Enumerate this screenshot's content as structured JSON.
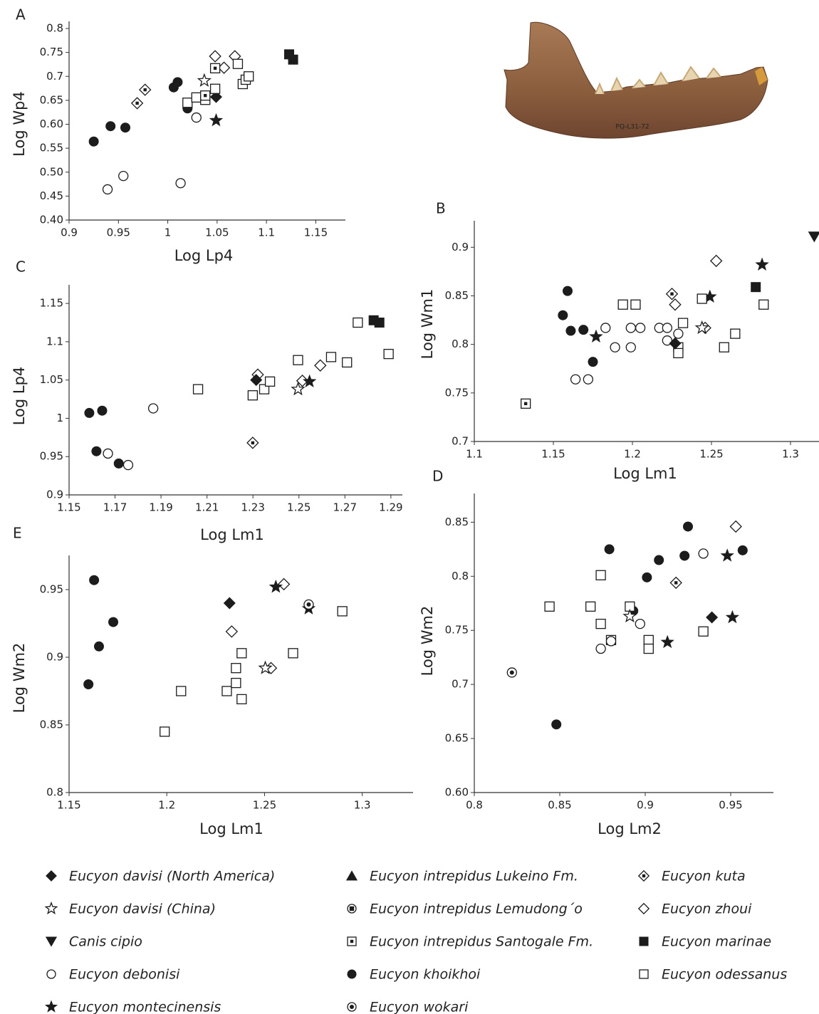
{
  "figure_photo": {
    "specimen_label": "PQ-L31-72"
  },
  "marker_color": "#1c1c1c",
  "legend": [
    {
      "name": "Eucyon davisi (North America)",
      "marker": "diamond-filled"
    },
    {
      "name": "Eucyon davisi (China)",
      "marker": "star-open"
    },
    {
      "name": "Canis cipio",
      "marker": "triangle-down"
    },
    {
      "name": "Eucyon debonisi",
      "marker": "circle-open"
    },
    {
      "name": "Eucyon montecinensis",
      "marker": "star-filled"
    },
    {
      "name": "Eucyon intrepidus Lukeino Fm.",
      "marker": "triangle-up"
    },
    {
      "name": "Eucyon intrepidus Lemudong´o",
      "marker": "circle-square"
    },
    {
      "name": "Eucyon intrepidus Santogale Fm.",
      "marker": "square-dot"
    },
    {
      "name": "Eucyon khoikhoi",
      "marker": "circle-filled"
    },
    {
      "name": "Eucyon wokari",
      "marker": "circle-dot"
    },
    {
      "name": "Eucyon kuta",
      "marker": "diamond-dot"
    },
    {
      "name": "Eucyon zhoui",
      "marker": "diamond-open"
    },
    {
      "name": "Eucyon marinae",
      "marker": "square-filled"
    },
    {
      "name": "Eucyon odessanus",
      "marker": "square-open"
    }
  ],
  "chart_data": [
    {
      "type": "scatter",
      "title": "A",
      "x_label": "Log Lp4",
      "y_label": "Log Wp4",
      "xlim": [
        0.9,
        1.18
      ],
      "ylim": [
        0.4,
        0.8
      ],
      "xticks": [
        0.9,
        0.95,
        1,
        1.05,
        1.1,
        1.15
      ],
      "yticks": [
        {
          "value": 0.4,
          "label": "0.40"
        },
        0.45,
        {
          "value": 0.5,
          "label": "0.50"
        },
        0.55,
        {
          "value": 0.6,
          "label": "0.60"
        },
        0.65,
        0.7,
        0.75,
        0.8
      ],
      "series": [
        {
          "name": "Eucyon khoikhoi",
          "x": [
            0.925,
            0.942,
            0.957,
            1.006,
            1.01,
            1.02
          ],
          "values": [
            0.564,
            0.596,
            0.593,
            0.677,
            0.688,
            0.633
          ]
        },
        {
          "name": "Eucyon debonisi",
          "x": [
            0.939,
            0.955,
            1.013,
            1.029
          ],
          "values": [
            0.464,
            0.492,
            0.477,
            0.614
          ]
        },
        {
          "name": "Eucyon kuta",
          "x": [
            0.969,
            0.977
          ],
          "values": [
            0.644,
            0.672
          ]
        },
        {
          "name": "Eucyon davisi (China)",
          "x": [
            1.037
          ],
          "values": [
            0.691
          ]
        },
        {
          "name": "Eucyon zhoui",
          "x": [
            1.048,
            1.057,
            1.068
          ],
          "values": [
            0.742,
            0.718,
            0.742
          ]
        },
        {
          "name": "Eucyon davisi (North America)",
          "x": [
            1.049
          ],
          "values": [
            0.657
          ]
        },
        {
          "name": "Eucyon montecinensis",
          "x": [
            1.049
          ],
          "values": [
            0.608
          ]
        },
        {
          "name": "Eucyon odessanus",
          "x": [
            1.02,
            1.029,
            1.038,
            1.048,
            1.071,
            1.076,
            1.079,
            1.082
          ],
          "values": [
            0.645,
            0.656,
            0.651,
            0.674,
            0.726,
            0.684,
            0.693,
            0.7
          ]
        },
        {
          "name": "Eucyon intrepidus Santogale Fm.",
          "x": [
            1.038,
            1.048
          ],
          "values": [
            0.66,
            0.717
          ]
        },
        {
          "name": "Eucyon marinae",
          "x": [
            1.123,
            1.127
          ],
          "values": [
            0.746,
            0.735
          ]
        }
      ]
    },
    {
      "type": "scatter",
      "title": "B",
      "x_label": "Log Lm1",
      "y_label": "Log Wm1",
      "xlim": [
        1.1,
        1.318
      ],
      "ylim": [
        0.7,
        0.92
      ],
      "xticks": [
        1.1,
        1.15,
        1.2,
        1.25,
        1.3
      ],
      "yticks": [
        0.7,
        0.75,
        0.8,
        0.85,
        0.9
      ],
      "series": [
        {
          "name": "Canis cipio",
          "x": [
            1.315
          ],
          "values": [
            0.911
          ]
        },
        {
          "name": "Eucyon khoikhoi",
          "x": [
            1.159,
            1.156,
            1.161,
            1.169,
            1.175
          ],
          "values": [
            0.855,
            0.83,
            0.814,
            0.815,
            0.782
          ]
        },
        {
          "name": "Eucyon montecinensis",
          "x": [
            1.177,
            1.249,
            1.282
          ],
          "values": [
            0.808,
            0.849,
            0.882
          ]
        },
        {
          "name": "Eucyon debonisi",
          "x": [
            1.164,
            1.172,
            1.183,
            1.189,
            1.199,
            1.199,
            1.205,
            1.217,
            1.222,
            1.222,
            1.229
          ],
          "values": [
            0.764,
            0.764,
            0.817,
            0.797,
            0.817,
            0.797,
            0.817,
            0.817,
            0.817,
            0.804,
            0.811
          ]
        },
        {
          "name": "Eucyon odessanus",
          "x": [
            1.194,
            1.202,
            1.229,
            1.229,
            1.232,
            1.244,
            1.258,
            1.265,
            1.283
          ],
          "values": [
            0.841,
            0.841,
            0.797,
            0.791,
            0.822,
            0.847,
            0.797,
            0.811,
            0.841
          ]
        },
        {
          "name": "Eucyon intrepidus Santogale Fm.",
          "x": [
            1.1325
          ],
          "values": [
            0.739
          ]
        },
        {
          "name": "Eucyon kuta",
          "x": [
            1.225
          ],
          "values": [
            0.852
          ]
        },
        {
          "name": "Eucyon zhoui",
          "x": [
            1.227,
            1.253,
            1.246
          ],
          "values": [
            0.841,
            0.886,
            0.817
          ]
        },
        {
          "name": "Eucyon davisi (North America)",
          "x": [
            1.227
          ],
          "values": [
            0.801
          ]
        },
        {
          "name": "Eucyon davisi (China)",
          "x": [
            1.244
          ],
          "values": [
            0.817
          ]
        },
        {
          "name": "Eucyon marinae",
          "x": [
            1.278
          ],
          "values": [
            0.859
          ]
        }
      ]
    },
    {
      "type": "scatter",
      "title": "C",
      "x_label": "Log Lm1",
      "y_label": "Log Lp4",
      "xlim": [
        1.15,
        1.295
      ],
      "ylim": [
        0.9,
        1.165
      ],
      "xticks": [
        1.15,
        1.17,
        1.19,
        1.21,
        1.23,
        1.25,
        1.27,
        1.29
      ],
      "yticks": [
        0.9,
        0.95,
        1,
        1.05,
        1.1,
        1.15
      ],
      "series": [
        {
          "name": "Eucyon khoikhoi",
          "x": [
            1.1588,
            1.1644,
            1.1619,
            1.1716
          ],
          "values": [
            1.007,
            1.01,
            0.957,
            0.941
          ]
        },
        {
          "name": "Eucyon debonisi",
          "x": [
            1.1669,
            1.1757,
            1.1866
          ],
          "values": [
            0.954,
            0.939,
            1.013
          ]
        },
        {
          "name": "Eucyon odessanus",
          "x": [
            1.2061,
            1.2299,
            1.2349,
            1.2374,
            1.2496,
            1.264,
            1.2709,
            1.2756,
            1.289
          ],
          "values": [
            1.038,
            1.03,
            1.038,
            1.048,
            1.076,
            1.08,
            1.073,
            1.125,
            1.084
          ]
        },
        {
          "name": "Eucyon kuta",
          "x": [
            1.2299
          ],
          "values": [
            0.968
          ]
        },
        {
          "name": "Eucyon zhoui",
          "x": [
            1.2321,
            1.2515,
            1.2593
          ],
          "values": [
            1.057,
            1.049,
            1.069
          ]
        },
        {
          "name": "Eucyon davisi (North America)",
          "x": [
            1.2314
          ],
          "values": [
            1.05
          ]
        },
        {
          "name": "Eucyon davisi (China)",
          "x": [
            1.2496
          ],
          "values": [
            1.038
          ]
        },
        {
          "name": "Eucyon montecinensis",
          "x": [
            1.2546
          ],
          "values": [
            1.048
          ]
        },
        {
          "name": "Eucyon marinae",
          "x": [
            1.2825,
            1.285
          ],
          "values": [
            1.128,
            1.125
          ]
        }
      ]
    },
    {
      "type": "scatter",
      "title": "D",
      "x_label": "Log Lm2",
      "y_label": "Log Wm2",
      "xlim": [
        0.8,
        0.975
      ],
      "ylim": [
        0.6,
        0.87
      ],
      "xticks": [
        0.8,
        0.85,
        0.9,
        0.95
      ],
      "yticks": [
        {
          "value": 0.6,
          "label": "0.60"
        },
        0.65,
        0.7,
        0.75,
        0.8,
        0.85
      ],
      "series": [
        {
          "name": "Eucyon wokari",
          "x": [
            0.822
          ],
          "values": [
            0.711
          ]
        },
        {
          "name": "Eucyon khoikhoi",
          "x": [
            0.848,
            0.879,
            0.893,
            0.901,
            0.908,
            0.923,
            0.925,
            0.957
          ],
          "values": [
            0.663,
            0.825,
            0.768,
            0.799,
            0.815,
            0.819,
            0.846,
            0.824
          ]
        },
        {
          "name": "Eucyon odessanus",
          "x": [
            0.844,
            0.868,
            0.874,
            0.874,
            0.88,
            0.891,
            0.902,
            0.902,
            0.934
          ],
          "values": [
            0.772,
            0.772,
            0.801,
            0.756,
            0.741,
            0.772,
            0.741,
            0.733,
            0.749
          ]
        },
        {
          "name": "Eucyon debonisi",
          "x": [
            0.874,
            0.88,
            0.897,
            0.934
          ],
          "values": [
            0.733,
            0.74,
            0.756,
            0.821
          ]
        },
        {
          "name": "Eucyon davisi (China)",
          "x": [
            0.891
          ],
          "values": [
            0.763
          ]
        },
        {
          "name": "Eucyon kuta",
          "x": [
            0.918
          ],
          "values": [
            0.794
          ]
        },
        {
          "name": "Eucyon zhoui",
          "x": [
            0.953
          ],
          "values": [
            0.846
          ]
        },
        {
          "name": "Eucyon montecinensis",
          "x": [
            0.913,
            0.948,
            0.951
          ],
          "values": [
            0.739,
            0.819,
            0.762
          ]
        },
        {
          "name": "Eucyon davisi (North America)",
          "x": [
            0.939
          ],
          "values": [
            0.762
          ]
        }
      ]
    },
    {
      "type": "scatter",
      "title": "E",
      "x_label": "Log Lm1",
      "y_label": "Log Wm2",
      "xlim": [
        1.15,
        1.326
      ],
      "ylim": [
        0.8,
        0.97
      ],
      "xticks": [
        1.15,
        1.2,
        1.25,
        1.3
      ],
      "yticks": [
        0.8,
        0.85,
        0.9,
        0.95
      ],
      "series": [
        {
          "name": "Eucyon khoikhoi",
          "x": [
            1.1628,
            1.1726,
            1.1653,
            1.1599
          ],
          "values": [
            0.957,
            0.926,
            0.908,
            0.88
          ]
        },
        {
          "name": "Eucyon odessanus",
          "x": [
            1.1989,
            1.2073,
            1.2307,
            1.2354,
            1.2383,
            1.2354,
            1.2383,
            1.2646,
            1.2898
          ],
          "values": [
            0.845,
            0.875,
            0.875,
            0.892,
            0.903,
            0.881,
            0.869,
            0.903,
            0.934
          ]
        },
        {
          "name": "Eucyon davisi (North America)",
          "x": [
            1.2321
          ],
          "values": [
            0.94
          ]
        },
        {
          "name": "Eucyon zhoui",
          "x": [
            1.2332,
            1.2599,
            1.2533
          ],
          "values": [
            0.919,
            0.954,
            0.892
          ]
        },
        {
          "name": "Eucyon davisi (China)",
          "x": [
            1.2504
          ],
          "values": [
            0.892
          ]
        },
        {
          "name": "Eucyon montecinensis",
          "x": [
            1.2558,
            1.2726
          ],
          "values": [
            0.952,
            0.936
          ]
        },
        {
          "name": "Eucyon wokari",
          "x": [
            1.2726
          ],
          "values": [
            0.939
          ]
        }
      ]
    }
  ]
}
